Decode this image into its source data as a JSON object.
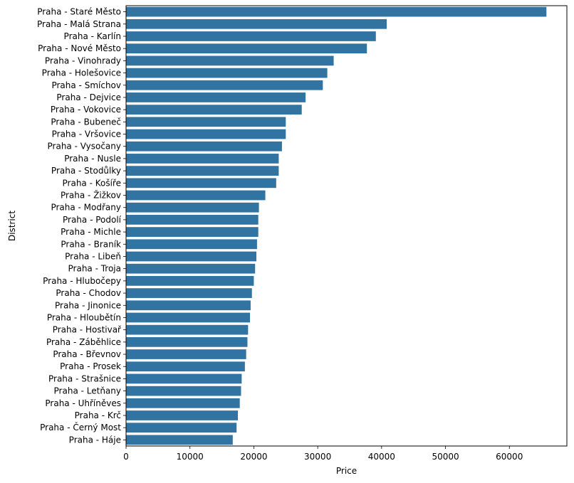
{
  "chart_data": {
    "type": "bar",
    "orientation": "horizontal",
    "title": "",
    "xlabel": "Price",
    "ylabel": "District",
    "xlim": [
      0,
      69000
    ],
    "xticks": [
      0,
      10000,
      20000,
      30000,
      40000,
      50000,
      60000
    ],
    "grid": false,
    "bar_color": "#3274a1",
    "categories": [
      "Praha - Staré Město",
      "Praha - Malá Strana",
      "Praha - Karlín",
      "Praha - Nové Město",
      "Praha - Vinohrady",
      "Praha - Holešovice",
      "Praha - Smíchov",
      "Praha - Dejvice",
      "Praha - Vokovice",
      "Praha - Bubeneč",
      "Praha - Vršovice",
      "Praha - Vysočany",
      "Praha - Nusle",
      "Praha - Stodůlky",
      "Praha - Košíře",
      "Praha - Žižkov",
      "Praha - Modřany",
      "Praha - Podolí",
      "Praha - Michle",
      "Praha - Braník",
      "Praha - Libeň",
      "Praha - Troja",
      "Praha - Hlubočepy",
      "Praha - Chodov",
      "Praha - Jinonice",
      "Praha - Hloubětín",
      "Praha - Hostivař",
      "Praha - Záběhlice",
      "Praha - Břevnov",
      "Praha - Prosek",
      "Praha - Strašnice",
      "Praha - Letňany",
      "Praha - Uhříněves",
      "Praha - Krč",
      "Praha - Černý Most",
      "Praha - Háje"
    ],
    "values": [
      65800,
      40800,
      39100,
      37700,
      32500,
      31500,
      30800,
      28100,
      27500,
      25000,
      25000,
      24400,
      23900,
      23900,
      23500,
      21800,
      20800,
      20700,
      20700,
      20500,
      20400,
      20200,
      20000,
      19700,
      19500,
      19400,
      19100,
      19000,
      18800,
      18600,
      18100,
      18000,
      17800,
      17500,
      17300,
      16700
    ]
  }
}
